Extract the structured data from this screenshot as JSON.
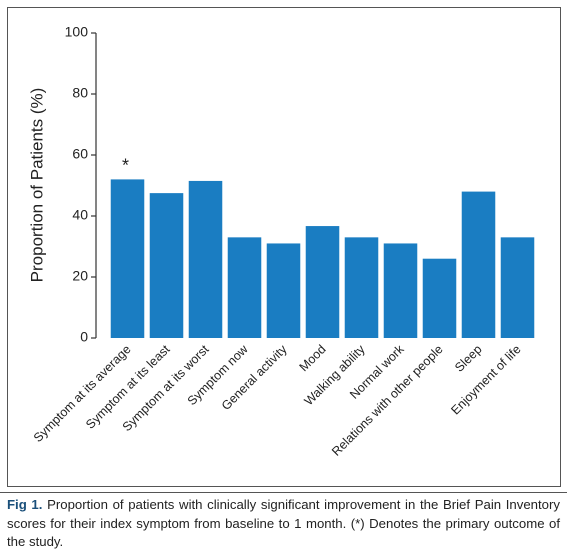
{
  "chart_data": {
    "type": "bar",
    "y_label": "Proportion of Patients (%)",
    "categories": [
      "Symptom at its average",
      "Symptom at its least",
      "Symptom at its worst",
      "Symptom now",
      "General activity",
      "Mood",
      "Walking ability",
      "Normal work",
      "Relations with other people",
      "Sleep",
      "Enjoyment of life"
    ],
    "values": [
      52,
      47.5,
      51.5,
      33,
      31,
      36.7,
      33,
      31,
      26,
      48,
      33
    ],
    "color": "#1a7dc2",
    "ylim": [
      0,
      100
    ],
    "yticks": [
      0,
      20,
      40,
      60,
      80,
      100
    ],
    "annotations": [
      {
        "category": "Symptom at its average",
        "text": "*"
      }
    ]
  },
  "caption": {
    "label": "Fig 1.",
    "text": "Proportion of patients with clinically significant improvement in the Brief Pain Inventory scores for their index symptom from baseline to 1 month. (*) Denotes the primary outcome of the study."
  }
}
